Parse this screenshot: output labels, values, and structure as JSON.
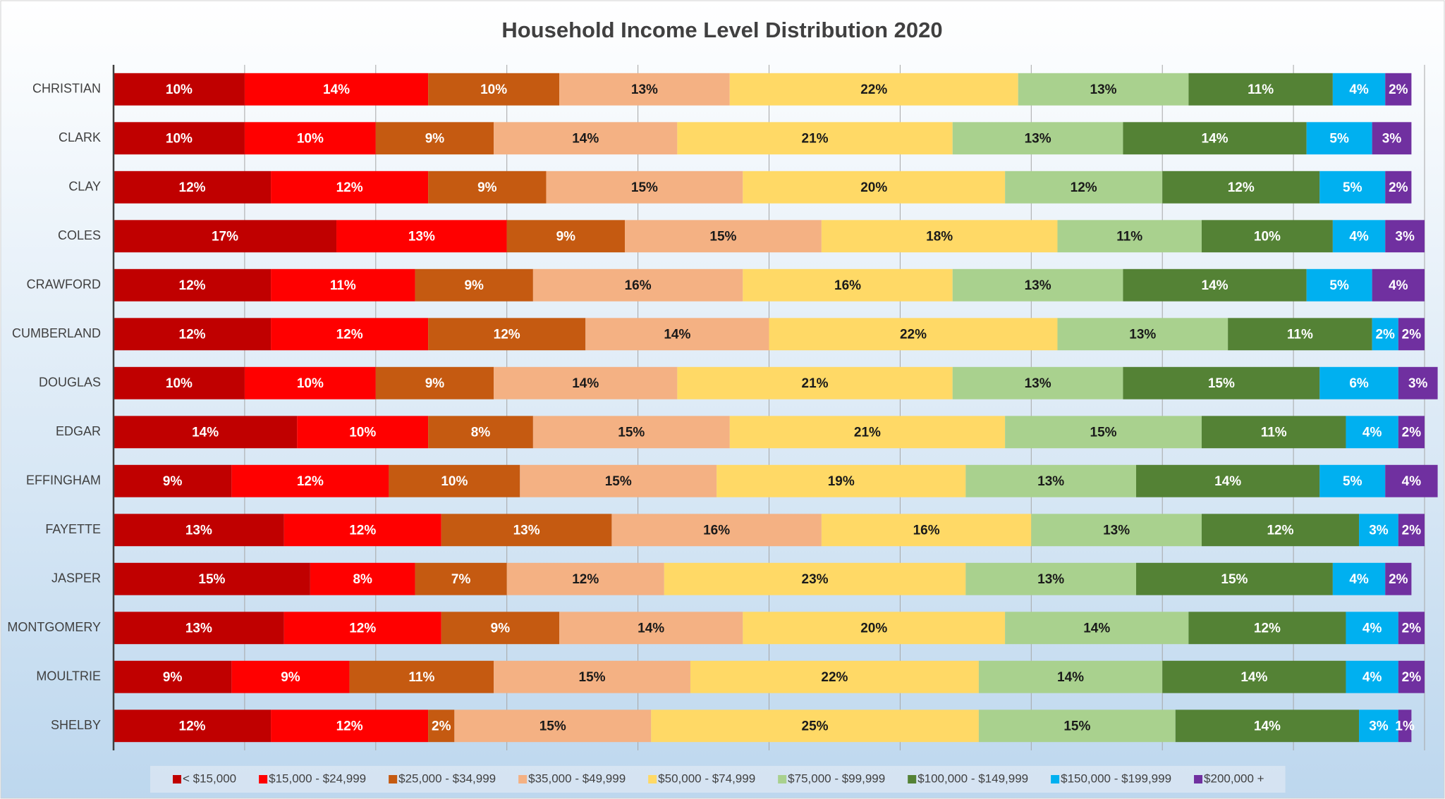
{
  "chart_data": {
    "type": "stacked_barh",
    "title": "Household Income Level Distribution 2020",
    "categories": [
      "CHRISTIAN",
      "CLARK",
      "CLAY",
      "COLES",
      "CRAWFORD",
      "CUMBERLAND",
      "DOUGLAS",
      "EDGAR",
      "EFFINGHAM",
      "FAYETTE",
      "JASPER",
      "MONTGOMERY",
      "MOULTRIE",
      "SHELBY"
    ],
    "series": [
      {
        "name": "< $15,000",
        "color": "#c00000",
        "values": [
          10,
          10,
          12,
          17,
          12,
          12,
          10,
          14,
          9,
          13,
          15,
          13,
          9,
          12
        ],
        "value_labels": [
          "10%",
          "10%",
          "12%",
          "17%",
          "12%",
          "12%",
          "10%",
          "14%",
          "9%",
          "13%",
          "15%",
          "13%",
          "9%",
          "12%"
        ]
      },
      {
        "name": "$15,000 - $24,999",
        "color": "#ff0000",
        "values": [
          14,
          10,
          12,
          13,
          11,
          12,
          10,
          10,
          12,
          12,
          8,
          12,
          9,
          12
        ],
        "value_labels": [
          "14%",
          "10%",
          "12%",
          "13%",
          "11%",
          "12%",
          "10%",
          "10%",
          "12%",
          "12%",
          "8%",
          "12%",
          "9%",
          "12%"
        ]
      },
      {
        "name": "$25,000 - $34,999",
        "color": "#c55a11",
        "values": [
          10,
          9,
          9,
          9,
          9,
          12,
          9,
          8,
          10,
          13,
          7,
          9,
          11,
          2
        ],
        "value_labels": [
          "10%",
          "9%",
          "9%",
          "9%",
          "9%",
          "12%",
          "9%",
          "8%",
          "10%",
          "13%",
          "7%",
          "9%",
          "11%",
          "2%"
        ]
      },
      {
        "name": "$35,000 - $49,999",
        "color": "#f4b183",
        "values": [
          13,
          14,
          15,
          15,
          16,
          14,
          14,
          15,
          15,
          16,
          12,
          14,
          15,
          15
        ],
        "value_labels": [
          "13%",
          "14%",
          "15%",
          "15%",
          "16%",
          "14%",
          "14%",
          "15%",
          "15%",
          "16%",
          "12%",
          "14%",
          "15%",
          "15%"
        ]
      },
      {
        "name": "$50,000 - $74,999",
        "color": "#ffd966",
        "values": [
          22,
          21,
          20,
          18,
          16,
          22,
          21,
          21,
          19,
          16,
          23,
          20,
          22,
          25
        ],
        "value_labels": [
          "22%",
          "21%",
          "20%",
          "18%",
          "16%",
          "22%",
          "21%",
          "21%",
          "19%",
          "16%",
          "23%",
          "20%",
          "22%",
          "25%"
        ]
      },
      {
        "name": "$75,000 - $99,999",
        "color": "#a9d18e",
        "values": [
          13,
          13,
          12,
          11,
          13,
          13,
          13,
          15,
          13,
          13,
          13,
          14,
          14,
          15
        ],
        "value_labels": [
          "13%",
          "13%",
          "12%",
          "11%",
          "13%",
          "13%",
          "13%",
          "15%",
          "13%",
          "13%",
          "13%",
          "14%",
          "14%",
          "15%"
        ]
      },
      {
        "name": "$100,000 - $149,999",
        "color": "#548235",
        "values": [
          11,
          14,
          12,
          10,
          14,
          11,
          15,
          11,
          14,
          12,
          15,
          12,
          14,
          14
        ],
        "value_labels": [
          "11%",
          "14%",
          "12%",
          "10%",
          "14%",
          "11%",
          "15%",
          "11%",
          "14%",
          "12%",
          "15%",
          "12%",
          "14%",
          "14%"
        ]
      },
      {
        "name": "$150,000 - $199,999",
        "color": "#00b0f0",
        "values": [
          4,
          5,
          5,
          4,
          5,
          2,
          6,
          4,
          5,
          3,
          4,
          4,
          4,
          3
        ],
        "value_labels": [
          "4%",
          "5%",
          "5%",
          "4%",
          "5%",
          "2%",
          "6%",
          "4%",
          "5%",
          "3%",
          "4%",
          "4%",
          "4%",
          "3%"
        ]
      },
      {
        "name": "$200,000 +",
        "color": "#7030a0",
        "values": [
          2,
          3,
          2,
          3,
          4,
          2,
          3,
          2,
          4,
          2,
          2,
          2,
          2,
          1
        ],
        "value_labels": [
          "2%",
          "3%",
          "2%",
          "3%",
          "4%",
          "2%",
          "3%",
          "2%",
          "4%",
          "2%",
          "2%",
          "2%",
          "2%",
          "1%"
        ]
      }
    ],
    "xlim": [
      0,
      100
    ],
    "xticks": [
      0,
      10,
      20,
      30,
      40,
      50,
      60,
      70,
      80,
      90,
      100
    ],
    "grid": true,
    "legend": "bottom"
  }
}
